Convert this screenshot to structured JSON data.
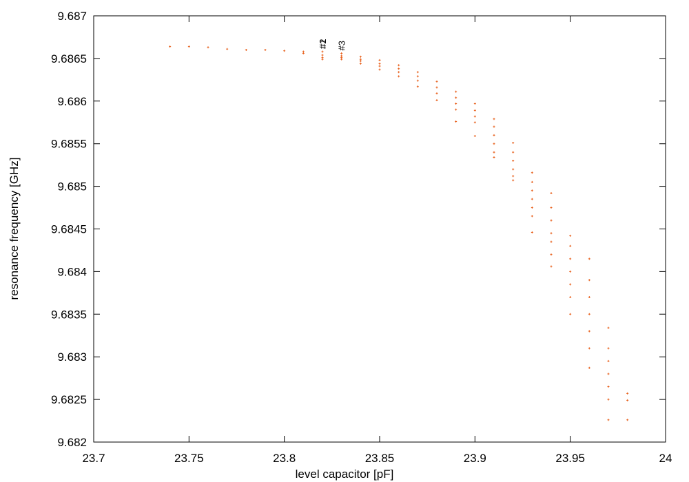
{
  "chart_data": {
    "type": "scatter",
    "xlabel": "level capacitor [pF]",
    "ylabel": "resonance frequency [GHz]",
    "color": "#e8601c",
    "xlim": [
      23.7,
      24
    ],
    "xticks": [
      23.7,
      23.75,
      23.8,
      23.85,
      23.9,
      23.95,
      24
    ],
    "ylim": [
      9.682,
      9.687
    ],
    "yticks": [
      9.682,
      9.6825,
      9.683,
      9.6835,
      9.684,
      9.6845,
      9.685,
      9.6855,
      9.686,
      9.6865,
      9.687
    ],
    "x": [
      23.74,
      23.75,
      23.76,
      23.77,
      23.78,
      23.79,
      23.8,
      23.81,
      23.81,
      23.82,
      23.82,
      23.82,
      23.82,
      23.83,
      23.83,
      23.83,
      23.83,
      23.84,
      23.84,
      23.84,
      23.84,
      23.85,
      23.85,
      23.85,
      23.85,
      23.86,
      23.86,
      23.86,
      23.86,
      23.87,
      23.87,
      23.87,
      23.87,
      23.88,
      23.88,
      23.88,
      23.88,
      23.89,
      23.89,
      23.89,
      23.89,
      23.89,
      23.9,
      23.9,
      23.9,
      23.9,
      23.9,
      23.91,
      23.91,
      23.91,
      23.91,
      23.91,
      23.91,
      23.92,
      23.92,
      23.92,
      23.92,
      23.92,
      23.92,
      23.93,
      23.93,
      23.93,
      23.93,
      23.93,
      23.93,
      23.93,
      23.94,
      23.94,
      23.94,
      23.94,
      23.94,
      23.94,
      23.94,
      23.95,
      23.95,
      23.95,
      23.95,
      23.95,
      23.95,
      23.95,
      23.96,
      23.96,
      23.96,
      23.96,
      23.96,
      23.96,
      23.96,
      23.97,
      23.97,
      23.97,
      23.97,
      23.97,
      23.97,
      23.97,
      23.98,
      23.98,
      23.98
    ],
    "y": [
      9.68664,
      9.68664,
      9.68663,
      9.68661,
      9.6866,
      9.6866,
      9.68659,
      9.68658,
      9.68656,
      9.68658,
      9.68654,
      9.68651,
      9.68649,
      9.68656,
      9.68653,
      9.68651,
      9.68649,
      9.68652,
      9.68649,
      9.68647,
      9.68644,
      9.68648,
      9.68644,
      9.68641,
      9.68637,
      9.68642,
      9.68638,
      9.68634,
      9.68629,
      9.68634,
      9.68629,
      9.68624,
      9.68617,
      9.68623,
      9.68616,
      9.68609,
      9.68601,
      9.68611,
      9.68604,
      9.68597,
      9.6859,
      9.68576,
      9.68597,
      9.68589,
      9.68582,
      9.68575,
      9.68559,
      9.68579,
      9.6857,
      9.6856,
      9.6855,
      9.6854,
      9.68534,
      9.68551,
      9.6854,
      9.6853,
      9.6852,
      9.68512,
      9.68507,
      9.68516,
      9.68505,
      9.68495,
      9.68485,
      9.68475,
      9.68465,
      9.68446,
      9.68492,
      9.68475,
      9.6846,
      9.68445,
      9.68435,
      9.6842,
      9.68406,
      9.68442,
      9.6843,
      9.68415,
      9.684,
      9.68385,
      9.6837,
      9.6835,
      9.68415,
      9.6839,
      9.6837,
      9.6835,
      9.6833,
      9.6831,
      9.68287,
      9.68334,
      9.6831,
      9.68295,
      9.6828,
      9.68265,
      9.6825,
      9.68226,
      9.68257,
      9.68249,
      9.68226
    ],
    "annotations": [
      {
        "text": "#2",
        "x": 23.82,
        "y": 9.68658
      },
      {
        "text": "#1",
        "x": 23.82,
        "y": 9.68658
      },
      {
        "text": "#3",
        "x": 23.83,
        "y": 9.68656
      }
    ]
  }
}
